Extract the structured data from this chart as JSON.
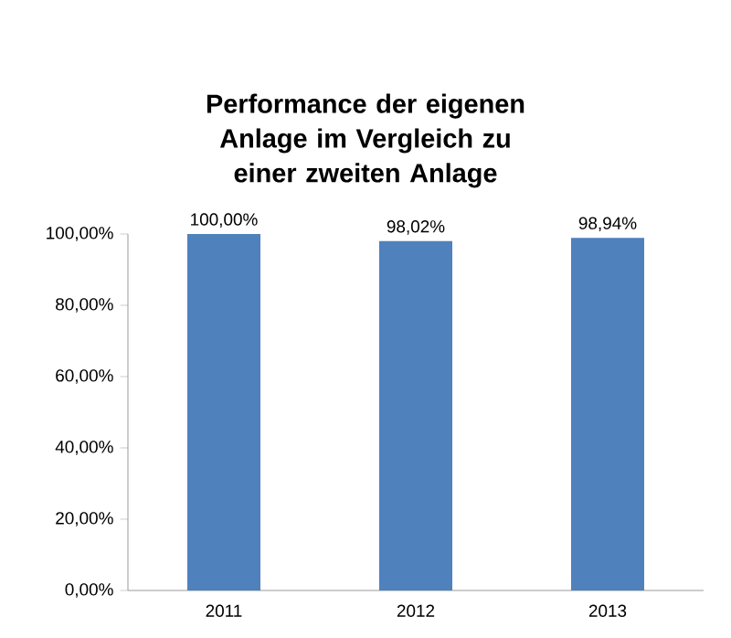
{
  "chart_data": {
    "type": "bar",
    "title": "Performance der eigenen Anlage im Vergleich zu einer zweiten Anlage",
    "categories": [
      "2011",
      "2012",
      "2013"
    ],
    "values": [
      100,
      98.02,
      98.94
    ],
    "value_labels": [
      "100,00%",
      "98,02%",
      "98,94%"
    ],
    "color": "#4f81bd",
    "ylim": [
      0,
      100
    ],
    "yticks": [
      {
        "value": 0,
        "label": "0,00%"
      },
      {
        "value": 20,
        "label": "20,00%"
      },
      {
        "value": 40,
        "label": "40,00%"
      },
      {
        "value": 60,
        "label": "60,00%"
      },
      {
        "value": 80,
        "label": "80,00%"
      },
      {
        "value": 100,
        "label": "100,00%"
      }
    ],
    "grid": false
  }
}
